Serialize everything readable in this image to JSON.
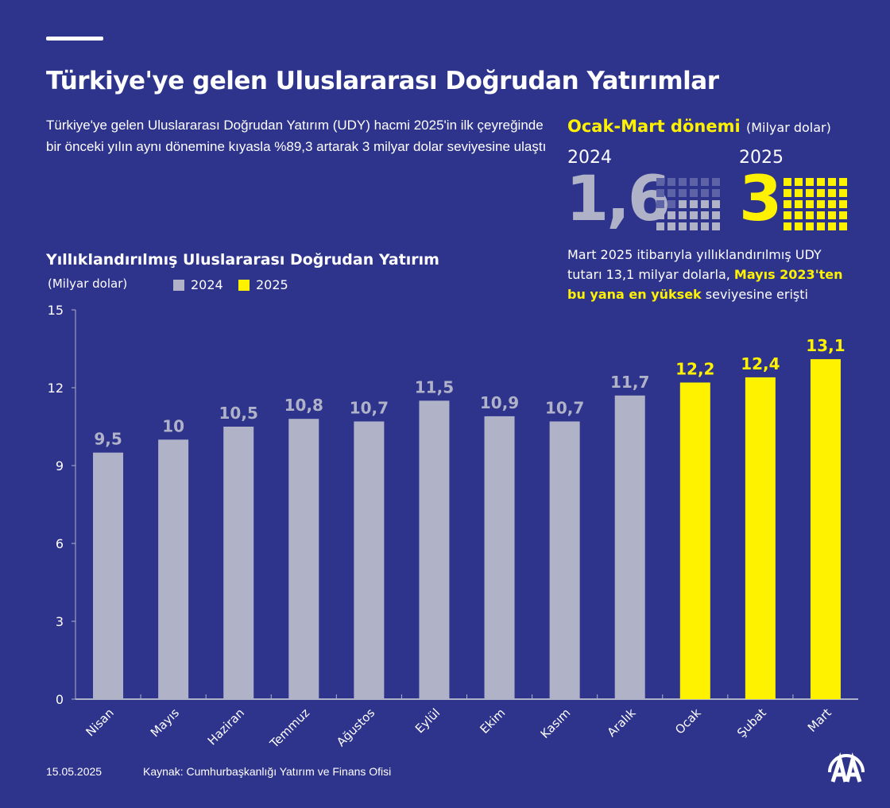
{
  "header": {
    "title": "Türkiye'ye gelen Uluslararası Doğrudan Yatırımlar",
    "subtitle": "Türkiye'ye gelen Uluslararası Doğrudan Yatırım (UDY) hacmi 2025'in ilk çeyreğinde bir önceki yılın aynı dönemine kıyasla %89,3 artarak 3 milyar dolar seviyesine ulaştı"
  },
  "summary": {
    "period_label": "Ocak-Mart dönemi",
    "period_unit": "(Milyar dolar)",
    "year_a": "2024",
    "value_a": "1,6",
    "value_a_num": 1.6,
    "year_b": "2025",
    "value_b": "3",
    "value_b_num": 3,
    "note_part1": "Mart 2025 itibarıyla yıllıklandırılmış UDY tutarı 13,1 milyar dolarla, ",
    "note_highlight": "Mayıs 2023'ten bu yana en yüksek",
    "note_part2": " seviyesine erişti"
  },
  "colors": {
    "background": "#2e338c",
    "series_2024": "#b0b3c8",
    "series_2025": "#fff200"
  },
  "footer": {
    "date": "15.05.2025",
    "source": "Kaynak: Cumhurbaşkanlığı Yatırım ve Finans Ofisi",
    "logo": "AA"
  },
  "chart_data": {
    "type": "bar",
    "title": "Yıllıklandırılmış Uluslararası Doğrudan Yatırım",
    "ylabel": "(Milyar dolar)",
    "ylim": [
      0,
      15
    ],
    "yticks": [
      0,
      3,
      6,
      9,
      12,
      15
    ],
    "grid": false,
    "legend": [
      {
        "name": "2024",
        "color": "#b0b3c8"
      },
      {
        "name": "2025",
        "color": "#fff200"
      }
    ],
    "categories": [
      "Nisan",
      "Mayıs",
      "Haziran",
      "Temmuz",
      "Ağustos",
      "Eylül",
      "Ekim",
      "Kasım",
      "Aralık",
      "Ocak",
      "Şubat",
      "Mart"
    ],
    "values": [
      9.5,
      10,
      10.5,
      10.8,
      10.7,
      11.5,
      10.9,
      10.7,
      11.7,
      12.2,
      12.4,
      13.1
    ],
    "labels": [
      "9,5",
      "10",
      "10,5",
      "10,8",
      "10,7",
      "11,5",
      "10,9",
      "10,7",
      "11,7",
      "12,2",
      "12,4",
      "13,1"
    ],
    "series_of_bar": [
      "2024",
      "2024",
      "2024",
      "2024",
      "2024",
      "2024",
      "2024",
      "2024",
      "2024",
      "2025",
      "2025",
      "2025"
    ]
  }
}
